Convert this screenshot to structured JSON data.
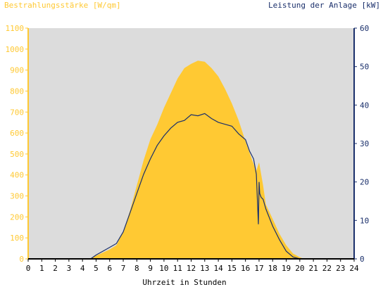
{
  "chart_data": {
    "type": "area",
    "title_left": "Bestrahlungsstärke [W/qm]",
    "title_right": "Leistung der Anlage [kW]",
    "xlabel": "Uhrzeit in Stunden",
    "xlim": [
      0,
      24
    ],
    "x_ticks": [
      "0",
      "1",
      "2",
      "3",
      "4",
      "5",
      "6",
      "7",
      "8",
      "9",
      "10",
      "11",
      "12",
      "13",
      "14",
      "15",
      "16",
      "17",
      "18",
      "19",
      "20",
      "21",
      "22",
      "23",
      "24"
    ],
    "ylim_left": [
      0,
      1100
    ],
    "y_ticks_left": [
      "0",
      "100",
      "200",
      "300",
      "400",
      "500",
      "600",
      "700",
      "800",
      "900",
      "1000",
      "1100"
    ],
    "ylim_right": [
      0,
      60
    ],
    "y_ticks_right": [
      "0",
      "10",
      "20",
      "30",
      "40",
      "50",
      "60"
    ],
    "grid": false,
    "colors": {
      "irradiance_fill": "#ffc933",
      "power_line": "#1a2f6b",
      "plot_background": "#dcdcdc",
      "axis_left": "#ffc933",
      "axis_right": "#1a2f6b"
    },
    "series": [
      {
        "type": "area",
        "axis": "left",
        "x": [
          0,
          4.5,
          5,
          5.5,
          6,
          6.5,
          7,
          7.5,
          8,
          8.5,
          9,
          9.5,
          10,
          10.5,
          11,
          11.5,
          12,
          12.5,
          13,
          13.5,
          14,
          14.5,
          15,
          15.5,
          16,
          16.5,
          16.8,
          17,
          17.3,
          17.5,
          18,
          18.5,
          19,
          19.5,
          20,
          20.3,
          24
        ],
        "y": [
          0,
          0,
          15,
          30,
          45,
          65,
          130,
          230,
          350,
          470,
          570,
          640,
          720,
          790,
          860,
          910,
          930,
          945,
          940,
          910,
          870,
          810,
          740,
          660,
          560,
          470,
          420,
          460,
          350,
          260,
          190,
          120,
          65,
          25,
          8,
          0,
          0
        ]
      },
      {
        "type": "line",
        "axis": "right",
        "x": [
          0,
          4.6,
          5,
          5.5,
          6,
          6.5,
          7,
          7.5,
          8,
          8.5,
          9,
          9.5,
          10,
          10.5,
          11,
          11.5,
          12,
          12.5,
          13,
          13.5,
          14,
          14.5,
          15,
          15.5,
          16,
          16.3,
          16.6,
          16.8,
          16.95,
          17,
          17.05,
          17.15,
          17.3,
          17.5,
          18,
          18.5,
          19,
          19.5,
          20,
          24
        ],
        "y": [
          0,
          0,
          1,
          2,
          3,
          4,
          7,
          12,
          17,
          22,
          26,
          29.5,
          32,
          34,
          35.5,
          36,
          37.5,
          37.2,
          37.8,
          36.5,
          35.5,
          35,
          34.5,
          32.5,
          31,
          28,
          26,
          22,
          9,
          20,
          17,
          16,
          15.5,
          13,
          8.5,
          5,
          2,
          0.5,
          0,
          0
        ]
      }
    ]
  }
}
